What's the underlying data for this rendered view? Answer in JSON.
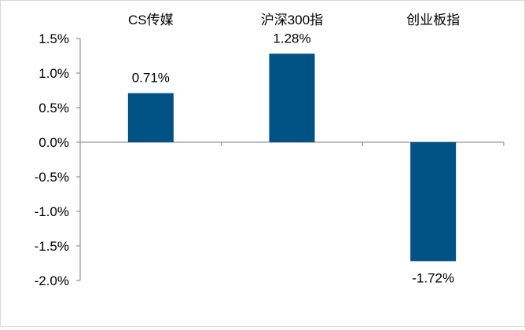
{
  "chart_data": {
    "type": "bar",
    "categories": [
      "CS传媒",
      "沪深300指",
      "创业板指"
    ],
    "values": [
      0.71,
      1.28,
      -1.72
    ],
    "data_labels": [
      "0.71%",
      "1.28%",
      "-1.72%"
    ],
    "title": "",
    "xlabel": "",
    "ylabel": "",
    "ylim": [
      -2.0,
      1.5
    ],
    "y_ticks": [
      1.5,
      1.0,
      0.5,
      0.0,
      -0.5,
      -1.0,
      -1.5,
      -2.0
    ],
    "y_tick_labels": [
      "1.5%",
      "1.0%",
      "0.5%",
      "0.0%",
      "-0.5%",
      "-1.0%",
      "-1.5%",
      "-2.0%"
    ],
    "category_labels_position": "top",
    "grid": false,
    "legend": "none",
    "bar_color": "#005284"
  }
}
